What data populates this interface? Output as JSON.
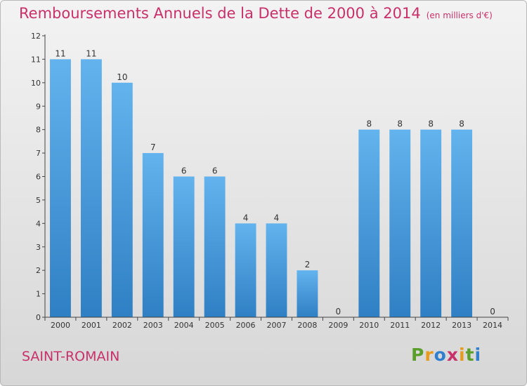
{
  "header": {
    "title": "Remboursements Annuels de la Dette de 2000 à 2014",
    "unit": "(en milliers d'€)"
  },
  "footer": {
    "place": "SAINT-ROMAIN",
    "logo": "Proxiti"
  },
  "colors": {
    "accent": "#c8306a",
    "bar_top": "#63b3ee",
    "bar_bottom": "#2f7fc4",
    "axis_text": "#333333"
  },
  "chart_data": {
    "type": "bar",
    "categories": [
      "2000",
      "2001",
      "2002",
      "2003",
      "2004",
      "2005",
      "2006",
      "2007",
      "2008",
      "2009",
      "2010",
      "2011",
      "2012",
      "2013",
      "2014"
    ],
    "values": [
      11,
      11,
      10,
      7,
      6,
      6,
      4,
      4,
      2,
      0,
      8,
      8,
      8,
      8,
      0
    ],
    "ylim": [
      0,
      12
    ],
    "yticks": [
      0,
      1,
      2,
      3,
      4,
      5,
      6,
      7,
      8,
      9,
      10,
      11,
      12
    ],
    "grid": false,
    "data_labels": true
  }
}
